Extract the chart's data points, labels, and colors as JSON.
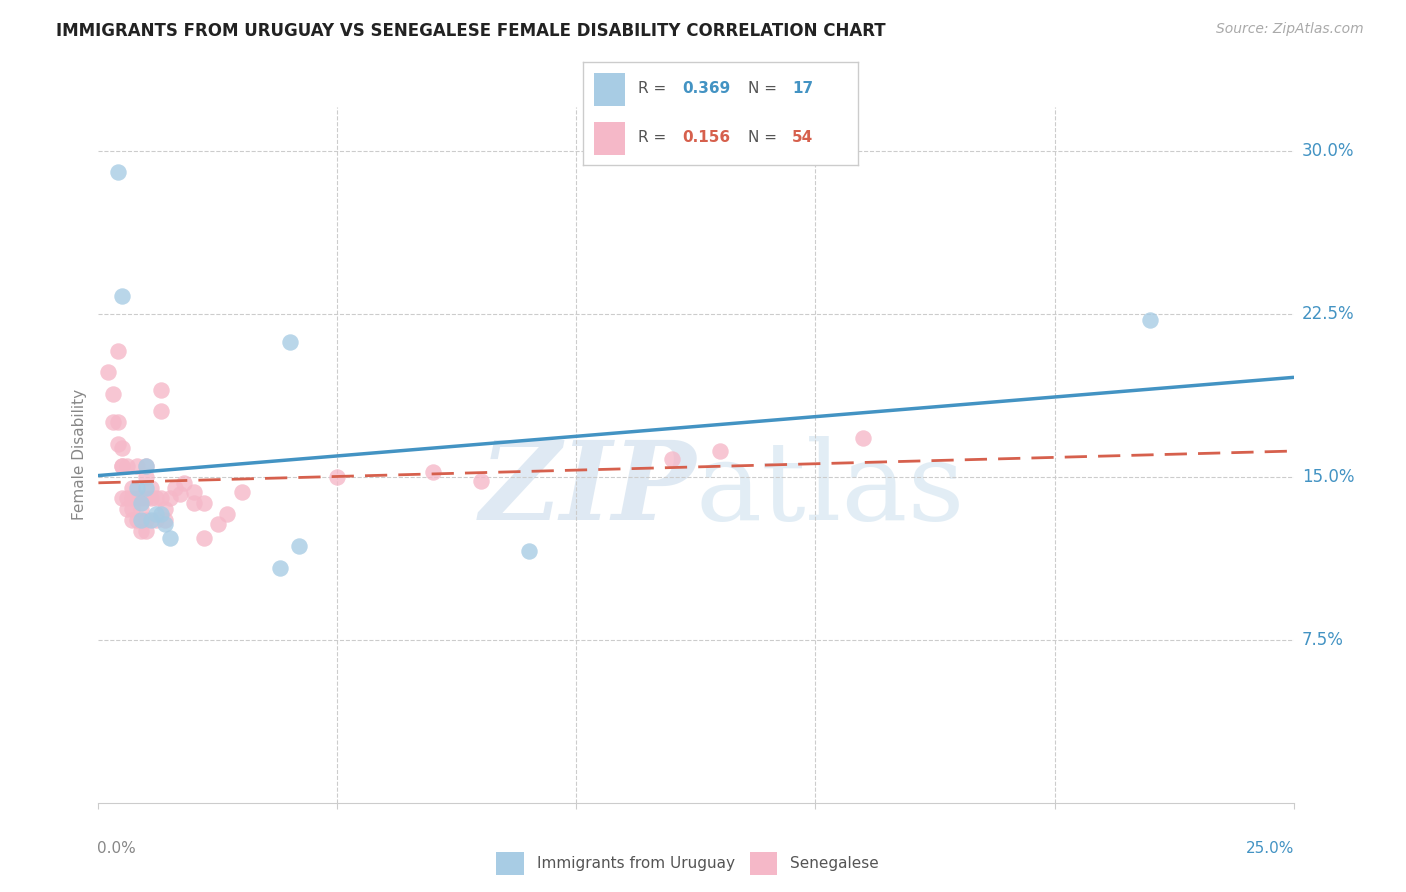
{
  "title": "IMMIGRANTS FROM URUGUAY VS SENEGALESE FEMALE DISABILITY CORRELATION CHART",
  "source": "Source: ZipAtlas.com",
  "ylabel": "Female Disability",
  "xlim": [
    0.0,
    0.25
  ],
  "ylim": [
    0.0,
    0.32
  ],
  "yticks": [
    0.075,
    0.15,
    0.225,
    0.3
  ],
  "ytick_labels": [
    "7.5%",
    "15.0%",
    "22.5%",
    "30.0%"
  ],
  "legend1_r": "0.369",
  "legend1_n": "17",
  "legend2_r": "0.156",
  "legend2_n": "54",
  "blue_scatter_color": "#a8cce4",
  "pink_scatter_color": "#f5b8c8",
  "blue_line_color": "#4393c3",
  "pink_line_color": "#d6604d",
  "grid_color": "#cccccc",
  "uruguay_x": [
    0.004,
    0.005,
    0.008,
    0.009,
    0.009,
    0.01,
    0.01,
    0.011,
    0.012,
    0.013,
    0.014,
    0.015,
    0.04,
    0.042,
    0.09,
    0.22,
    0.038
  ],
  "uruguay_y": [
    0.29,
    0.233,
    0.145,
    0.138,
    0.13,
    0.155,
    0.145,
    0.13,
    0.133,
    0.133,
    0.128,
    0.122,
    0.212,
    0.118,
    0.116,
    0.222,
    0.108
  ],
  "senegalese_x": [
    0.002,
    0.003,
    0.003,
    0.004,
    0.004,
    0.004,
    0.005,
    0.005,
    0.005,
    0.005,
    0.006,
    0.006,
    0.006,
    0.007,
    0.007,
    0.007,
    0.007,
    0.008,
    0.008,
    0.008,
    0.009,
    0.009,
    0.009,
    0.01,
    0.01,
    0.01,
    0.01,
    0.01,
    0.011,
    0.011,
    0.012,
    0.012,
    0.013,
    0.013,
    0.013,
    0.014,
    0.014,
    0.015,
    0.016,
    0.017,
    0.018,
    0.02,
    0.02,
    0.022,
    0.022,
    0.025,
    0.027,
    0.03,
    0.05,
    0.07,
    0.08,
    0.12,
    0.13,
    0.16
  ],
  "senegalese_y": [
    0.198,
    0.188,
    0.175,
    0.165,
    0.175,
    0.208,
    0.155,
    0.155,
    0.163,
    0.14,
    0.155,
    0.14,
    0.135,
    0.145,
    0.14,
    0.135,
    0.13,
    0.14,
    0.155,
    0.13,
    0.135,
    0.125,
    0.14,
    0.14,
    0.15,
    0.155,
    0.13,
    0.125,
    0.145,
    0.14,
    0.13,
    0.14,
    0.14,
    0.18,
    0.19,
    0.135,
    0.13,
    0.14,
    0.145,
    0.142,
    0.147,
    0.138,
    0.143,
    0.138,
    0.122,
    0.128,
    0.133,
    0.143,
    0.15,
    0.152,
    0.148,
    0.158,
    0.162,
    0.168
  ],
  "bottom_legend": [
    {
      "label": "Immigrants from Uruguay",
      "color": "#a8cce4"
    },
    {
      "label": "Senegalese",
      "color": "#f5b8c8"
    }
  ]
}
